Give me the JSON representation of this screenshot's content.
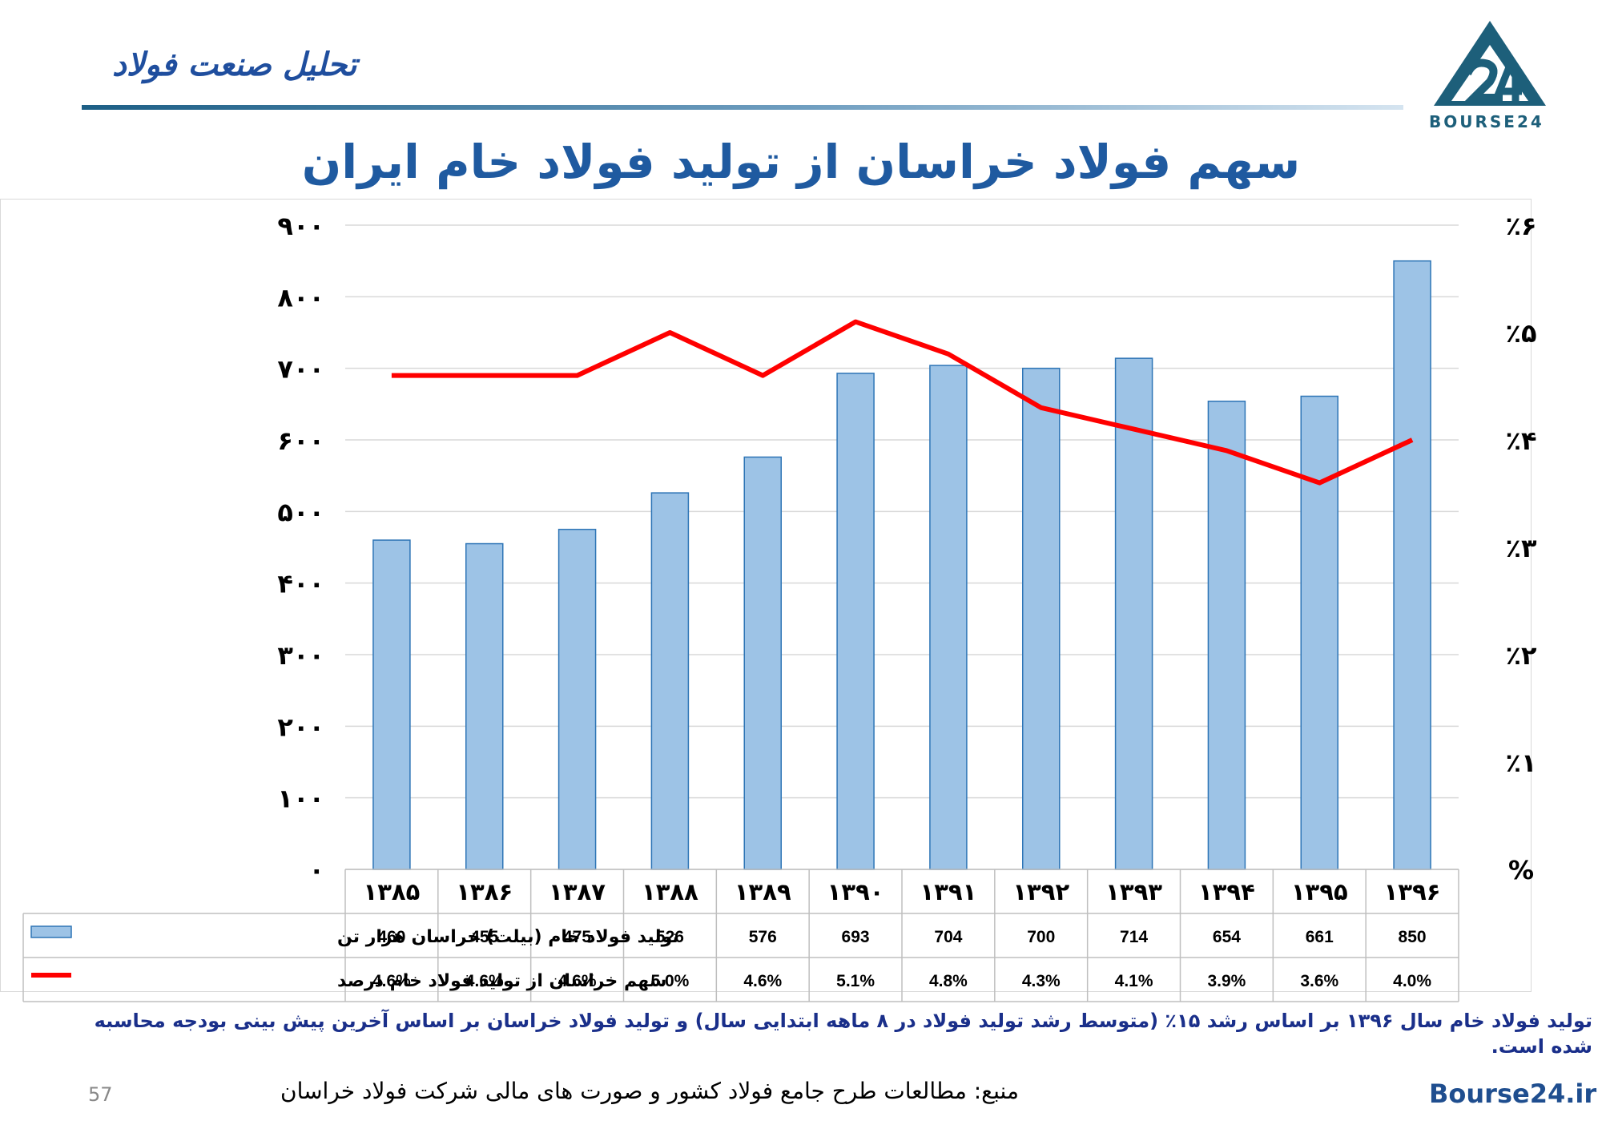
{
  "header": {
    "brand": "تحلیل صنعت فولاد",
    "logo_text": "BOURSE24"
  },
  "title": "سهم فولاد خراسان از تولید فولاد خام ایران",
  "note": "تولید فولاد خام سال ۱۳۹۶ بر اساس رشد ۱۵٪ (متوسط رشد تولید فولاد در ۸ ماهه ابتدایی سال) و تولید فولاد خراسان بر اساس آخرین پیش بینی بودجه محاسبه شده است.",
  "footer": {
    "source": "منبع: مطالعات طرح جامع فولاد کشور و صورت های مالی شرکت فولاد خراسان",
    "page": "57",
    "site": "Bourse24.ir"
  },
  "colors": {
    "bar": "#9dc3e6",
    "bar_border": "#2e75b6",
    "line": "#ff0000",
    "title": "#1f5aa0",
    "logo": "#1d5f7a"
  },
  "chart_data": {
    "type": "bar",
    "categories": [
      "۱۳۸۵",
      "۱۳۸۶",
      "۱۳۸۷",
      "۱۳۸۸",
      "۱۳۸۹",
      "۱۳۹۰",
      "۱۳۹۱",
      "۱۳۹۲",
      "۱۳۹۳",
      "۱۳۹۴",
      "۱۳۹۵",
      "۱۳۹۶"
    ],
    "series": [
      {
        "name": "تولید فولاد خام (بیلت) خراسان هزار تن",
        "type": "bar",
        "axis": "left",
        "values": [
          460,
          455,
          475,
          526,
          576,
          693,
          704,
          700,
          714,
          654,
          661,
          850
        ],
        "labels": [
          "460",
          "455",
          "475",
          "526",
          "576",
          "693",
          "704",
          "700",
          "714",
          "654",
          "661",
          "850"
        ]
      },
      {
        "name": "سهم خراسان از تولید فولاد خام درصد",
        "type": "line",
        "axis": "right",
        "values": [
          4.6,
          4.6,
          4.6,
          5.0,
          4.6,
          5.1,
          4.8,
          4.3,
          4.1,
          3.9,
          3.6,
          4.0
        ],
        "labels": [
          "4.6%",
          "4.6%",
          "4.6%",
          "5.0%",
          "4.6%",
          "5.1%",
          "4.8%",
          "4.3%",
          "4.1%",
          "3.9%",
          "3.6%",
          "4.0%"
        ]
      }
    ],
    "ylim": [
      0,
      900
    ],
    "y2lim": [
      0,
      6
    ],
    "yticks": [
      "۰",
      "۱۰۰",
      "۲۰۰",
      "۳۰۰",
      "۴۰۰",
      "۵۰۰",
      "۶۰۰",
      "۷۰۰",
      "۸۰۰",
      "۹۰۰"
    ],
    "y2ticks": [
      "%",
      "٪۱",
      "٪۲",
      "٪۳",
      "٪۴",
      "٪۵",
      "٪۶"
    ],
    "grid": true,
    "legend": "data-table"
  }
}
